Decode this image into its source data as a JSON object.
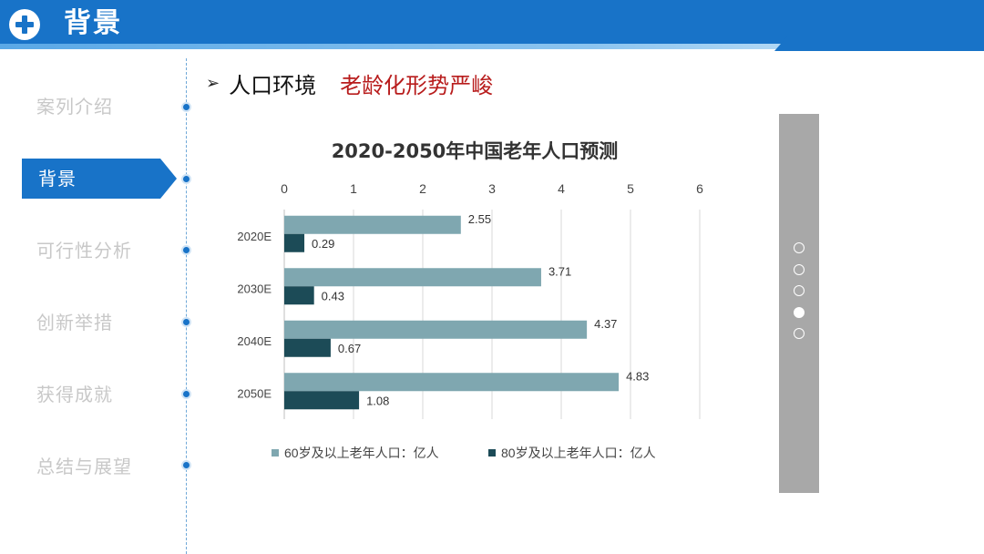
{
  "header": {
    "title": "背景"
  },
  "sidebar": {
    "items": [
      {
        "label": "案列介绍",
        "active": false
      },
      {
        "label": "背景",
        "active": true
      },
      {
        "label": "可行性分析",
        "active": false
      },
      {
        "label": "创新举措",
        "active": false
      },
      {
        "label": "获得成就",
        "active": false
      },
      {
        "label": "总结与展望",
        "active": false
      }
    ]
  },
  "subtitle": {
    "bullet": "➢",
    "main": "人口环境",
    "highlight": "老龄化形势严峻"
  },
  "pager": {
    "count": 5,
    "active_index": 3
  },
  "colors": {
    "primary": "#1873c8",
    "series1": "#7fa7b0",
    "series2": "#1c4b57",
    "highlight": "#b81c1c"
  },
  "chart_data": {
    "type": "bar",
    "orientation": "horizontal",
    "title": "2020-2050年中国老年人口预测",
    "categories": [
      "2020E",
      "2030E",
      "2040E",
      "2050E"
    ],
    "series": [
      {
        "name": "60岁及以上老年人口：亿人",
        "values": [
          2.55,
          3.71,
          4.37,
          4.83
        ]
      },
      {
        "name": "80岁及以上老年人口：亿人",
        "values": [
          0.29,
          0.43,
          0.67,
          1.08
        ]
      }
    ],
    "value_labels": [
      [
        "2.55",
        "3.71",
        "4.37",
        "4.83"
      ],
      [
        "0.29",
        "0.43",
        "0.67",
        "1.08"
      ]
    ],
    "xlim": [
      0,
      6
    ],
    "xticks": [
      "0",
      "1",
      "2",
      "3",
      "4",
      "5",
      "6"
    ],
    "xaxis_position": "top",
    "grid": true,
    "legend_position": "bottom"
  }
}
